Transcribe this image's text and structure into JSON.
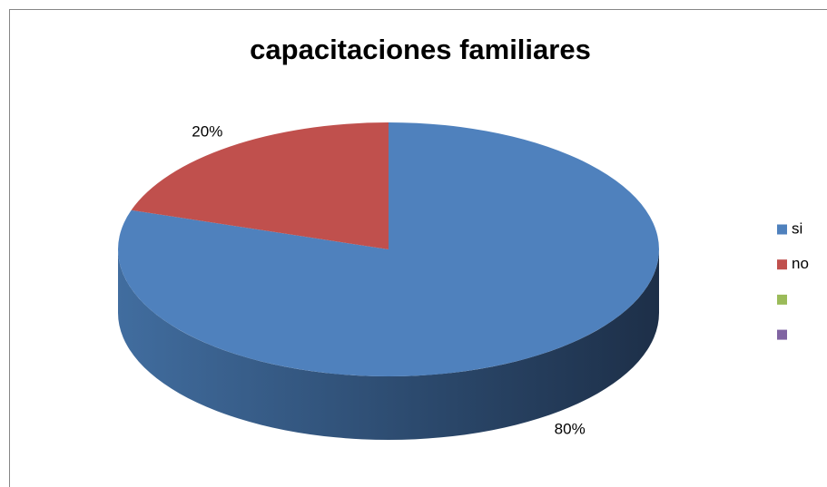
{
  "chart_data": {
    "type": "pie",
    "title": "capacitaciones familiares",
    "categories": [
      "si",
      "no",
      null,
      null
    ],
    "values": [
      80,
      20,
      0,
      0
    ],
    "value_labels": [
      "80%",
      "20%",
      null,
      null
    ],
    "colors": [
      "#4f81bd",
      "#c0504d",
      "#9bbb59",
      "#8064a2"
    ],
    "legend": "right"
  }
}
